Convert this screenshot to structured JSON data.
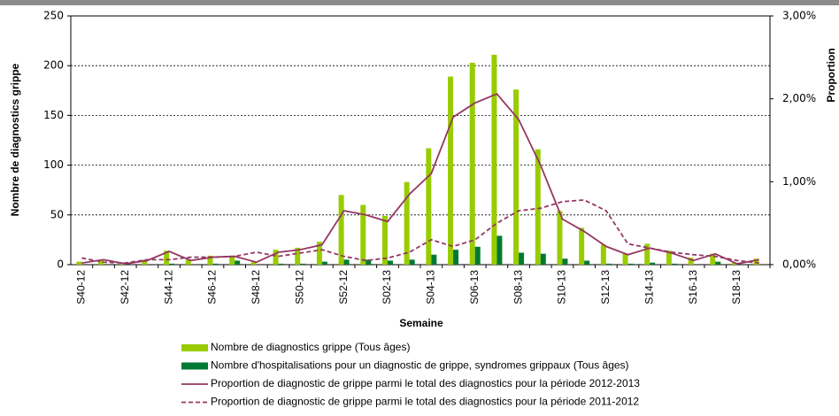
{
  "chart_data": {
    "type": "bar",
    "x_label": "Semaine",
    "y_label": "Nombre de diagnostics grippe",
    "y2_label": "Proportion",
    "categories": [
      "S40-12",
      null,
      "S42-12",
      null,
      "S44-12",
      null,
      "S46-12",
      null,
      "S48-12",
      null,
      "S50-12",
      null,
      "S52-12",
      null,
      "S02-13",
      null,
      "S04-13",
      null,
      "S06-13",
      null,
      "S08-13",
      null,
      "S10-13",
      null,
      "S12-13",
      null,
      "S14-13",
      null,
      "S16-13",
      null,
      "S18-13",
      null
    ],
    "ylim": [
      0,
      250
    ],
    "yticks": [
      0,
      50,
      100,
      150,
      200,
      250
    ],
    "y2lim": [
      0,
      3
    ],
    "y2ticks": [
      {
        "value": 0,
        "label": "0,00%"
      },
      {
        "value": 1,
        "label": "1,00%"
      },
      {
        "value": 2,
        "label": "2,00%"
      },
      {
        "value": 3,
        "label": "3,00%"
      }
    ],
    "grid": true,
    "series": [
      {
        "name": "Nombre de diagnostics grippe (Tous âges)",
        "type": "bar",
        "color": "#99cc00",
        "values": [
          3,
          4,
          1,
          5,
          14,
          5,
          9,
          9,
          3,
          15,
          17,
          23,
          70,
          60,
          49,
          83,
          117,
          189,
          203,
          211,
          176,
          116,
          54,
          37,
          20,
          11,
          21,
          14,
          7,
          11,
          2,
          6
        ]
      },
      {
        "name": "Nombre d'hospitalisations pour un diagnostic de grippe, syndromes grippaux (Tous âges)",
        "type": "bar",
        "color": "#007a33",
        "values": [
          0,
          0,
          0,
          0,
          1,
          0,
          1,
          4,
          0,
          1,
          1,
          3,
          5,
          5,
          4,
          5,
          10,
          15,
          18,
          29,
          12,
          11,
          6,
          4,
          1,
          1,
          2,
          1,
          0,
          3,
          0,
          0
        ]
      },
      {
        "name": "Proportion de diagnostic de grippe parmi le total des diagnostics pour la période 2012-2013",
        "type": "line",
        "axis": "y2",
        "color": "#953764",
        "line_style": "solid",
        "values": [
          0.02,
          0.06,
          0.01,
          0.05,
          0.16,
          0.05,
          0.09,
          0.1,
          0.03,
          0.15,
          0.18,
          0.24,
          0.65,
          0.6,
          0.52,
          0.85,
          1.1,
          1.78,
          1.95,
          2.06,
          1.75,
          1.2,
          0.55,
          0.4,
          0.22,
          0.12,
          0.2,
          0.14,
          0.05,
          0.13,
          0.01,
          0.06
        ]
      },
      {
        "name": "Proportion de diagnostic de grippe parmi le total des diagnostics pour la période 2011-2012",
        "type": "line",
        "axis": "y2",
        "color": "#953764",
        "line_style": "dashed",
        "values": [
          0.08,
          0.03,
          0.02,
          0.06,
          0.06,
          0.09,
          0.09,
          0.1,
          0.15,
          0.1,
          0.14,
          0.18,
          0.1,
          0.05,
          0.08,
          0.15,
          0.3,
          0.22,
          0.3,
          0.5,
          0.65,
          0.68,
          0.76,
          0.78,
          0.65,
          0.25,
          0.2,
          0.15,
          0.12,
          0.1,
          0.05,
          0.02
        ]
      }
    ]
  }
}
